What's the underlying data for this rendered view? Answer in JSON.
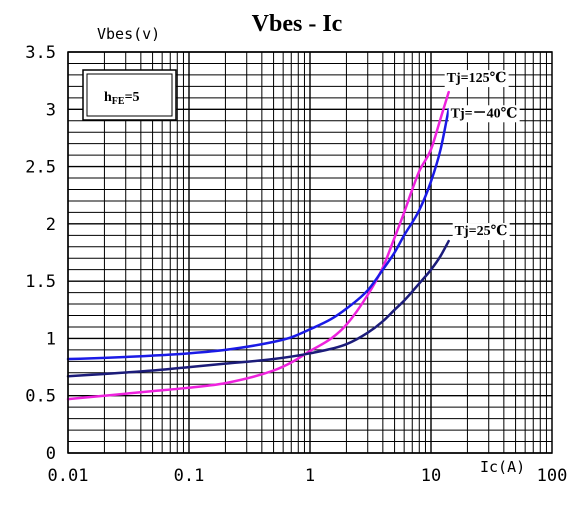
{
  "chart_data": {
    "type": "line",
    "title": "Vbes - Ic",
    "xlabel": "Ic(A)",
    "ylabel": "Vbes(v)",
    "x_scale": "log",
    "xlim": [
      0.01,
      100
    ],
    "ylim": [
      0,
      3.5
    ],
    "grid": true,
    "x_ticks": [
      "0.01",
      "0.1",
      "1",
      "10",
      "100"
    ],
    "y_ticks": [
      "0",
      "0.5",
      "1",
      "1.5",
      "2",
      "2.5",
      "3",
      "3.5"
    ],
    "condition_box": {
      "main": "h",
      "sub": "FE",
      "suffix": "=5"
    },
    "series": [
      {
        "name": "Tj=125℃",
        "color": "#ee22dd",
        "points": [
          [
            0.01,
            0.47
          ],
          [
            0.02,
            0.5
          ],
          [
            0.05,
            0.54
          ],
          [
            0.1,
            0.57
          ],
          [
            0.2,
            0.61
          ],
          [
            0.5,
            0.72
          ],
          [
            0.7,
            0.79
          ],
          [
            1,
            0.89
          ],
          [
            1.5,
            1.0
          ],
          [
            2,
            1.12
          ],
          [
            3,
            1.38
          ],
          [
            4,
            1.62
          ],
          [
            5,
            1.88
          ],
          [
            6,
            2.1
          ],
          [
            7,
            2.3
          ],
          [
            8,
            2.46
          ],
          [
            10,
            2.65
          ],
          [
            12,
            2.92
          ],
          [
            14,
            3.15
          ]
        ]
      },
      {
        "name": "Tj=－40℃",
        "color": "#1a1ae6",
        "points": [
          [
            0.01,
            0.82
          ],
          [
            0.02,
            0.83
          ],
          [
            0.05,
            0.85
          ],
          [
            0.1,
            0.87
          ],
          [
            0.2,
            0.9
          ],
          [
            0.5,
            0.97
          ],
          [
            0.7,
            1.01
          ],
          [
            1,
            1.08
          ],
          [
            1.5,
            1.17
          ],
          [
            2,
            1.26
          ],
          [
            3,
            1.42
          ],
          [
            4,
            1.6
          ],
          [
            5,
            1.75
          ],
          [
            6,
            1.9
          ],
          [
            8,
            2.12
          ],
          [
            10,
            2.37
          ],
          [
            12,
            2.65
          ],
          [
            14,
            3.0
          ]
        ]
      },
      {
        "name": "Tj=25℃",
        "color": "#1c1c7a",
        "points": [
          [
            0.01,
            0.67
          ],
          [
            0.02,
            0.69
          ],
          [
            0.05,
            0.72
          ],
          [
            0.1,
            0.75
          ],
          [
            0.2,
            0.78
          ],
          [
            0.5,
            0.82
          ],
          [
            1,
            0.87
          ],
          [
            2,
            0.95
          ],
          [
            3,
            1.05
          ],
          [
            4,
            1.15
          ],
          [
            5,
            1.25
          ],
          [
            6,
            1.33
          ],
          [
            8,
            1.48
          ],
          [
            10,
            1.6
          ],
          [
            12,
            1.72
          ],
          [
            14,
            1.85
          ]
        ]
      }
    ]
  }
}
